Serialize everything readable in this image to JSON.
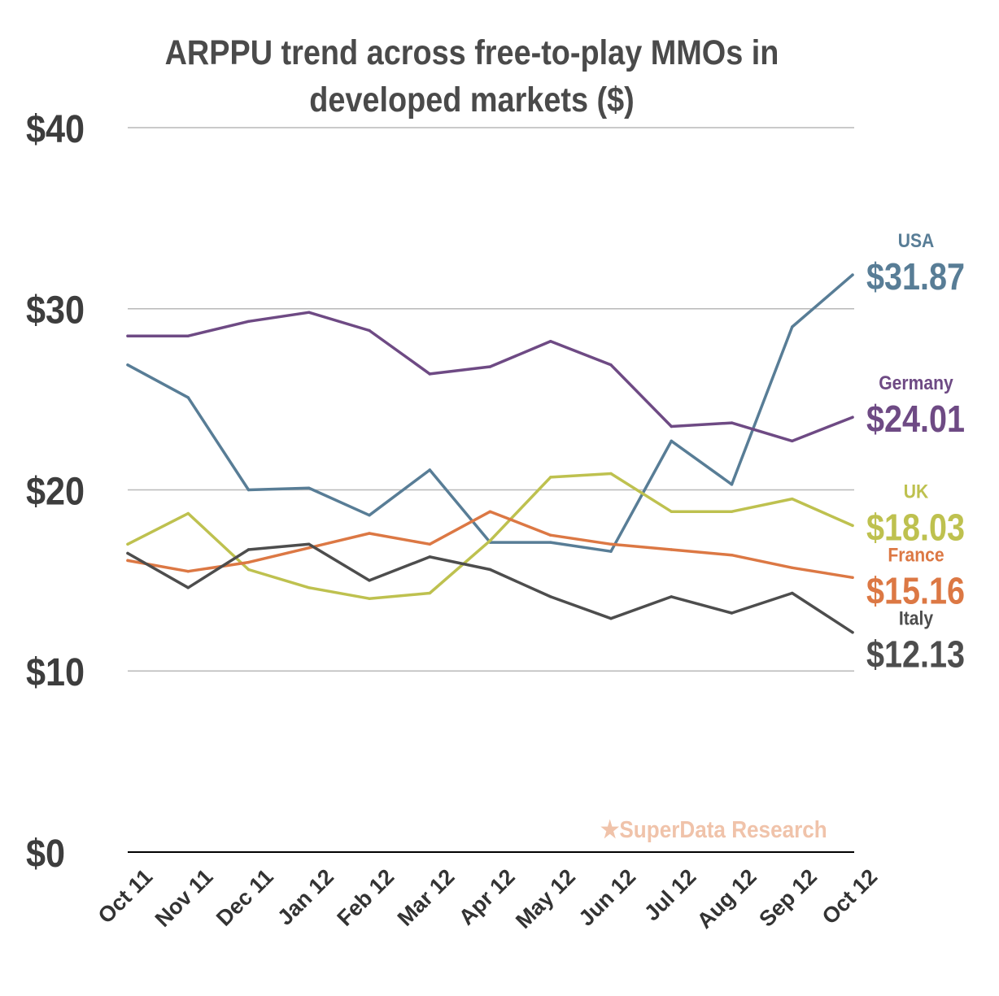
{
  "chart_data": {
    "type": "line",
    "title_lines": [
      "ARPPU trend across free-to-play MMOs in",
      "developed markets ($)"
    ],
    "categories": [
      "Oct 11",
      "Nov 11",
      "Dec 11",
      "Jan 12",
      "Feb 12",
      "Mar 12",
      "Apr 12",
      "May 12",
      "Jun 12",
      "Jul 12",
      "Aug 12",
      "Sep 12",
      "Oct 12"
    ],
    "y_ticks": [
      "$0",
      "$10",
      "$20",
      "$30",
      "$40"
    ],
    "ylim": [
      0,
      40
    ],
    "grid": true,
    "legend": "end-of-line labels (right)",
    "series": [
      {
        "name": "USA",
        "end_label": "$31.87",
        "color": "#587d96",
        "values": [
          26.9,
          25.1,
          20.0,
          20.1,
          18.6,
          21.1,
          17.1,
          17.1,
          16.6,
          22.7,
          20.3,
          29.0,
          31.87
        ]
      },
      {
        "name": "Germany",
        "end_label": "$24.01",
        "color": "#6e4a84",
        "values": [
          28.5,
          28.5,
          29.3,
          29.8,
          28.8,
          26.4,
          26.8,
          28.2,
          26.9,
          23.5,
          23.7,
          22.7,
          24.01
        ]
      },
      {
        "name": "UK",
        "end_label": "$18.03",
        "color": "#bec14f",
        "values": [
          17.0,
          18.7,
          15.6,
          14.6,
          14.0,
          14.3,
          17.2,
          20.7,
          20.9,
          18.8,
          18.8,
          19.5,
          18.03
        ]
      },
      {
        "name": "France",
        "end_label": "$15.16",
        "color": "#dc7844",
        "values": [
          16.1,
          15.5,
          16.0,
          16.8,
          17.6,
          17.0,
          18.8,
          17.5,
          17.0,
          16.7,
          16.4,
          15.7,
          15.16
        ]
      },
      {
        "name": "Italy",
        "end_label": "$12.13",
        "color": "#4d4d4d",
        "values": [
          16.5,
          14.6,
          16.7,
          17.0,
          15.0,
          16.3,
          15.6,
          14.1,
          12.9,
          14.1,
          13.2,
          14.3,
          12.13
        ]
      }
    ]
  },
  "watermark": {
    "star": "★",
    "text": "SuperData Research"
  }
}
